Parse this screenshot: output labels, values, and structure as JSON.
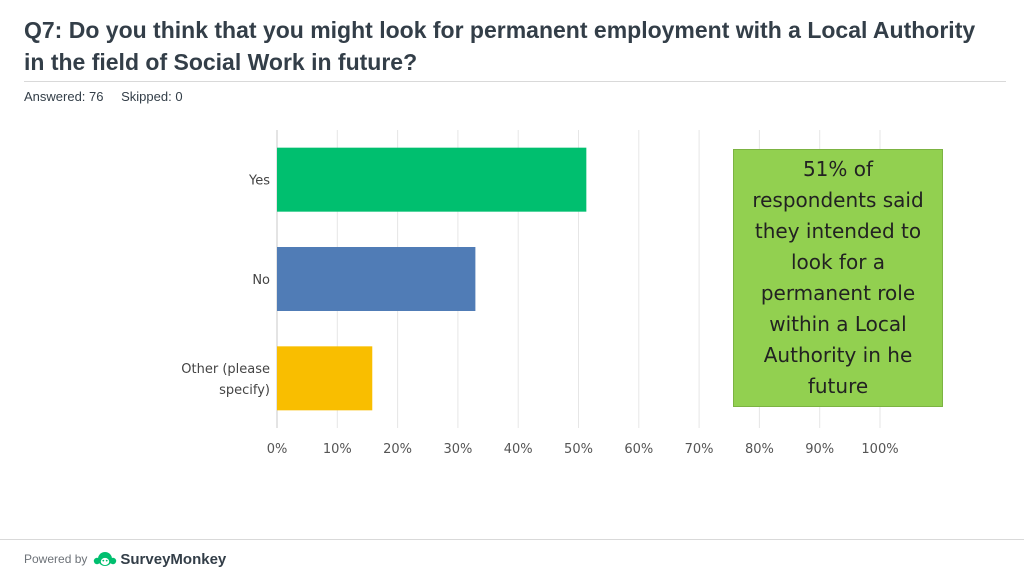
{
  "header": {
    "question": "Q7: Do you think that you might look for permanent employment with a Local Authority in the field of Social Work in future?",
    "answered": "Answered: 76",
    "skipped": "Skipped: 0"
  },
  "callout": {
    "text": "51% of respondents said they intended to look for a permanent role within a Local Authority in he future",
    "color": "#92d050"
  },
  "footer": {
    "powered_by": "Powered by",
    "brand": "SurveyMonkey",
    "brand_icon": "surveymonkey-logo-icon",
    "brand_color": "#00bf6f"
  },
  "chart_data": {
    "type": "bar",
    "orientation": "horizontal",
    "categories": [
      "Yes",
      "No",
      "Other (please specify)"
    ],
    "category_lines": [
      [
        "Yes"
      ],
      [
        "No"
      ],
      [
        "Other (please",
        "specify)"
      ]
    ],
    "values": [
      51.3,
      32.9,
      15.8
    ],
    "colors": [
      "#00bf6f",
      "#507cb6",
      "#f9be00"
    ],
    "xlim": [
      0,
      100
    ],
    "xticks": [
      "0%",
      "10%",
      "20%",
      "30%",
      "40%",
      "50%",
      "60%",
      "70%",
      "80%",
      "90%",
      "100%"
    ],
    "grid": true
  }
}
